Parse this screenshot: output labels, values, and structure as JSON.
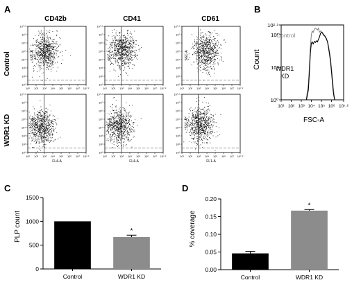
{
  "panels": {
    "A": "A",
    "B": "B",
    "C": "C",
    "D": "D"
  },
  "panel_a": {
    "columns": [
      "CD42b",
      "CD41",
      "CD61"
    ],
    "rows": [
      "Control",
      "WDR1 KD"
    ],
    "y_axis_label": "SSC-A",
    "x_axis_labels": [
      "FL4-A",
      "FL4-A",
      "FL1-A"
    ],
    "tick_labels": [
      "10¹",
      "10²",
      "10³",
      "10⁴",
      "10⁵",
      "10⁶",
      "10⁷",
      "10⁸"
    ],
    "top_tick": "10⁷·²"
  },
  "chart_data": [
    {
      "panel": "B",
      "type": "line",
      "xlabel": "FSC-A",
      "ylabel": "Count",
      "x_scale": "log",
      "y_scale": "log",
      "x_ticks": [
        "10¹",
        "10²",
        "10³",
        "10⁴",
        "10⁵",
        "10⁶",
        "10⁷·²"
      ],
      "y_ticks": [
        "10⁰",
        "10¹",
        "10²",
        "10²·³"
      ],
      "xlim": [
        10,
        15848931.9
      ],
      "ylim": [
        1,
        199.5
      ],
      "series": [
        {
          "name": "Control",
          "color": "#888888",
          "points": [
            [
              3000,
              1
            ],
            [
              5000,
              3
            ],
            [
              6500,
              12
            ],
            [
              8000,
              45
            ],
            [
              10000,
              100
            ],
            [
              12000,
              130
            ],
            [
              15000,
              118
            ],
            [
              20000,
              148
            ],
            [
              25000,
              160
            ],
            [
              32000,
              150
            ],
            [
              40000,
              140
            ],
            [
              50000,
              158
            ],
            [
              63000,
              120
            ],
            [
              80000,
              130
            ],
            [
              100000,
              125
            ],
            [
              126000,
              110
            ],
            [
              160000,
              95
            ],
            [
              200000,
              90
            ],
            [
              250000,
              82
            ],
            [
              316000,
              70
            ],
            [
              400000,
              60
            ],
            [
              500000,
              45
            ],
            [
              630000,
              30
            ],
            [
              800000,
              18
            ],
            [
              1000000,
              9
            ],
            [
              1260000,
              4
            ],
            [
              1600000,
              2
            ],
            [
              2000000,
              1
            ]
          ]
        },
        {
          "name": "WDR1 KD",
          "color": "#000000",
          "points": [
            [
              3200,
              1
            ],
            [
              5000,
              2
            ],
            [
              6500,
              8
            ],
            [
              8000,
              28
            ],
            [
              10000,
              55
            ],
            [
              12000,
              60
            ],
            [
              15000,
              52
            ],
            [
              20000,
              62
            ],
            [
              25000,
              58
            ],
            [
              32000,
              65
            ],
            [
              40000,
              60
            ],
            [
              50000,
              72
            ],
            [
              63000,
              85
            ],
            [
              80000,
              110
            ],
            [
              100000,
              120
            ],
            [
              126000,
              115
            ],
            [
              160000,
              100
            ],
            [
              200000,
              95
            ],
            [
              250000,
              85
            ],
            [
              316000,
              75
            ],
            [
              400000,
              60
            ],
            [
              500000,
              40
            ],
            [
              630000,
              25
            ],
            [
              800000,
              14
            ],
            [
              1000000,
              7
            ],
            [
              1260000,
              3
            ],
            [
              1600000,
              1.5
            ],
            [
              2000000,
              1
            ]
          ]
        }
      ],
      "annotations": [
        "Control",
        "WDR1",
        "KD"
      ]
    },
    {
      "panel": "C",
      "type": "bar",
      "categories": [
        "Control",
        "WDR1 KD"
      ],
      "values": [
        1000,
        670
      ],
      "errors": [
        0,
        40
      ],
      "colors": [
        "#000000",
        "#8c8c8c"
      ],
      "ylabel": "PLP count",
      "ylim": [
        0,
        1500
      ],
      "yticks": [
        "0",
        "500",
        "1000",
        "1500"
      ],
      "significance": [
        "",
        "*"
      ]
    },
    {
      "panel": "D",
      "type": "bar",
      "categories": [
        "Control",
        "WDR1 KD"
      ],
      "values": [
        0.046,
        0.167
      ],
      "errors": [
        0.006,
        0.003
      ],
      "colors": [
        "#000000",
        "#8c8c8c"
      ],
      "ylabel": "% coverage",
      "ylim": [
        0,
        0.2
      ],
      "yticks": [
        "0.00",
        "0.05",
        "0.10",
        "0.15",
        "0.20"
      ],
      "significance": [
        "",
        "*"
      ]
    }
  ]
}
